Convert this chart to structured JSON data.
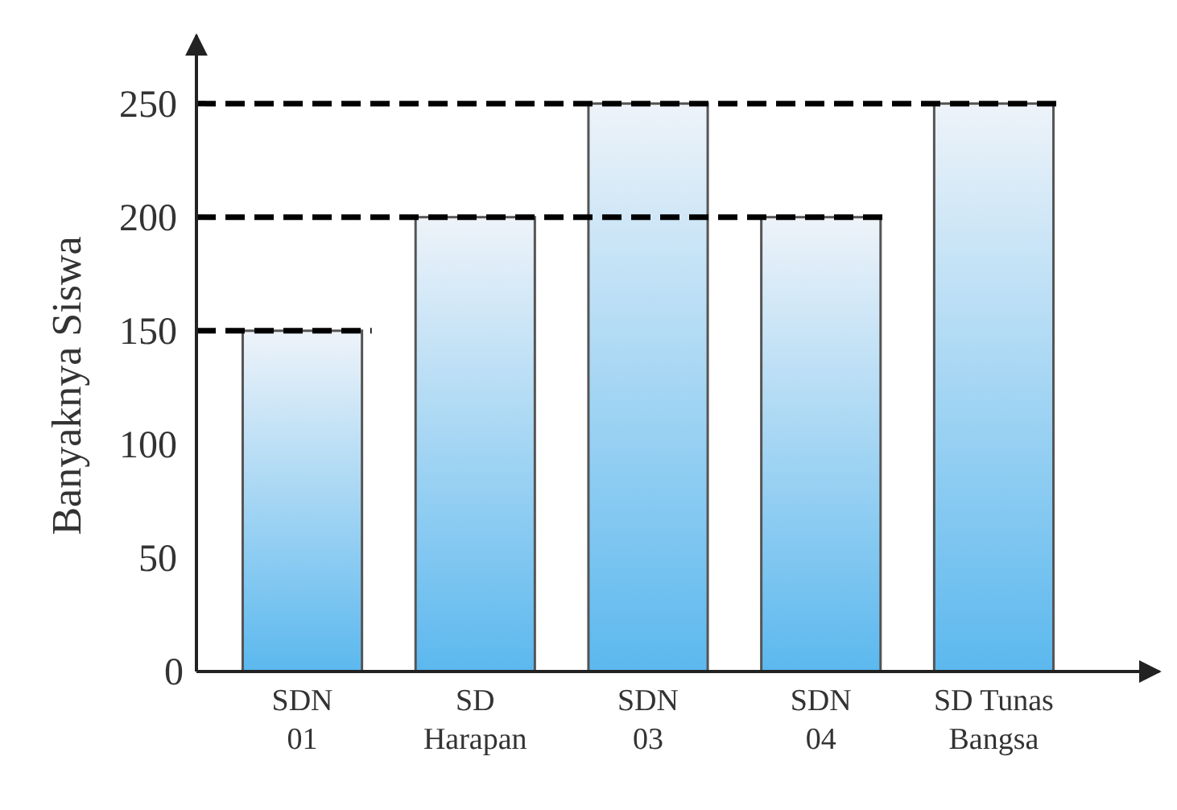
{
  "chart_data": {
    "type": "bar",
    "ylabel": "Banyaknya Siswa",
    "categories": [
      "SDN 01",
      "SD Harapan",
      "SDN 03",
      "SDN 04",
      "SD Tunas Bangsa"
    ],
    "values": [
      150,
      200,
      250,
      200,
      250
    ],
    "color": "#5bb8ee",
    "ylim": [
      0,
      280
    ],
    "yticks": [
      0,
      50,
      100,
      150,
      200,
      250
    ],
    "ref_lines": [
      {
        "axis": "y",
        "value": 150,
        "line_style": "dashed",
        "color": "#000000"
      },
      {
        "axis": "y",
        "value": 200,
        "line_style": "dashed",
        "color": "#000000"
      },
      {
        "axis": "y",
        "value": 250,
        "line_style": "dashed",
        "color": "#000000"
      }
    ]
  }
}
